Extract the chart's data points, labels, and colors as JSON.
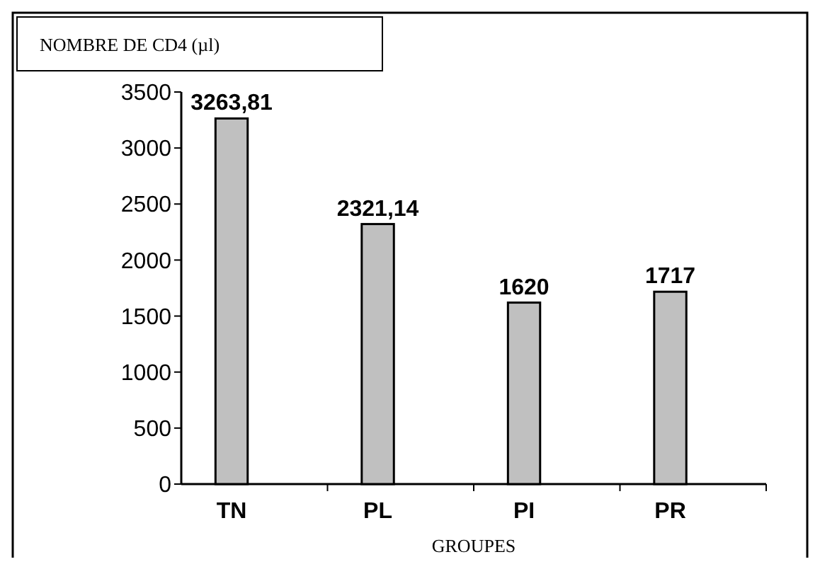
{
  "chart_data": {
    "type": "bar",
    "title": "NOMBRE DE CD4 (µl)",
    "xlabel": "GROUPES",
    "categories": [
      "TN",
      "PL",
      "PI",
      "PR"
    ],
    "values": [
      3263.81,
      2321.14,
      1620,
      1717
    ],
    "value_labels": [
      "3263,81",
      "2321,14",
      "1620",
      "1717"
    ],
    "color": "#c0c0c0",
    "ylim": [
      0,
      3500
    ],
    "yticks": [
      0,
      500,
      1000,
      1500,
      2000,
      2500,
      3000,
      3500
    ],
    "grid": false
  }
}
